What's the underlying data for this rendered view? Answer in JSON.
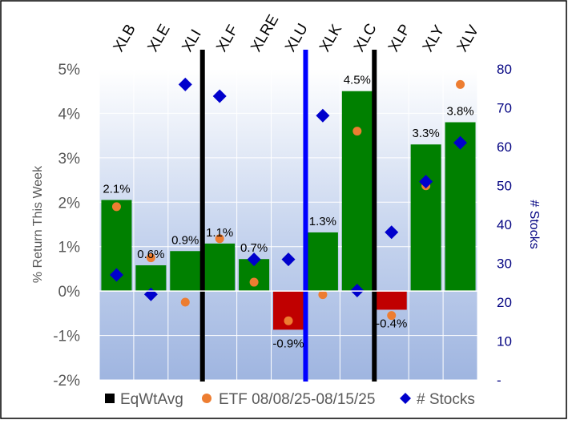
{
  "chart_data": {
    "type": "bar",
    "title": "",
    "categories": [
      "XLB",
      "XLE",
      "XLI",
      "XLF",
      "XLRE",
      "XLU",
      "XLK",
      "XLC",
      "XLP",
      "XLY",
      "XLV"
    ],
    "series": [
      {
        "name": "EqWtAvg",
        "type": "bar",
        "axis": "left",
        "values": [
          2.05,
          0.58,
          0.9,
          1.07,
          0.72,
          -0.87,
          1.32,
          4.5,
          -0.42,
          3.3,
          3.8
        ],
        "labels": [
          "2.1%",
          "0.6%",
          "0.9%",
          "1.1%",
          "0.7%",
          "-0.9%",
          "1.3%",
          "4.5%",
          "-0.4%",
          "3.3%",
          "3.8%"
        ]
      },
      {
        "name": "ETF 08/08/25-08/15/25",
        "type": "scatter",
        "axis": "left",
        "values": [
          1.9,
          0.75,
          -0.25,
          1.18,
          0.2,
          -0.67,
          -0.08,
          3.6,
          -0.55,
          2.37,
          4.65
        ]
      },
      {
        "name": "# Stocks",
        "type": "scatter",
        "axis": "right",
        "values": [
          27,
          22,
          76,
          73,
          31,
          31,
          68,
          23,
          38,
          51,
          61
        ]
      }
    ],
    "ylabel": "% Return This Week",
    "ylim": [
      -2,
      5
    ],
    "yticks": [
      "-2%",
      "-1%",
      "0%",
      "1%",
      "2%",
      "3%",
      "4%",
      "5%"
    ],
    "y2label": "# Stocks",
    "y2lim": [
      0,
      80
    ],
    "y2ticks": [
      "-",
      "10",
      "20",
      "30",
      "40",
      "50",
      "60",
      "70",
      "80"
    ],
    "grid": true,
    "legend_position": "bottom",
    "colors": {
      "positive_bar": "#008000",
      "negative_bar": "#c00000",
      "etf_marker": "#ed7d31",
      "stocks_marker": "#0000cc",
      "divider_black": "#000000",
      "divider_blue": "#0000ff",
      "legend_bar_swatch": "#000000",
      "right_axis_text": "#000080"
    }
  }
}
